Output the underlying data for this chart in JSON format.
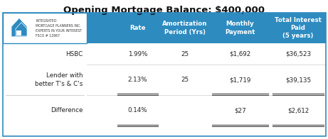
{
  "title": "Opening Mortgage Balance: $400,000",
  "title_fontsize": 9.5,
  "header_bg": "#2e8bc0",
  "header_text_color": "#ffffff",
  "col_headers": [
    "Rate",
    "Amortization\nPeriod (Yrs)",
    "Monthly\nPayment",
    "Total Interest\nPaid\n(5 years)"
  ],
  "row_labels": [
    "HSBC",
    "Lender with\nbetter T's & C's",
    "Difference"
  ],
  "row_data": [
    [
      "1.99%",
      "25",
      "$1,692",
      "$36,523"
    ],
    [
      "2.13%",
      "25",
      "$1,719",
      "$39,135"
    ],
    [
      "0.14%",
      "",
      "$27",
      "$2,612"
    ]
  ],
  "logo_text": "INTEGRATED\nMORTGAGE PLANNERS INC.\nEXPERTS IN YOUR INTEREST\nFSCO # 12867",
  "logo_color": "#2e8bc0"
}
